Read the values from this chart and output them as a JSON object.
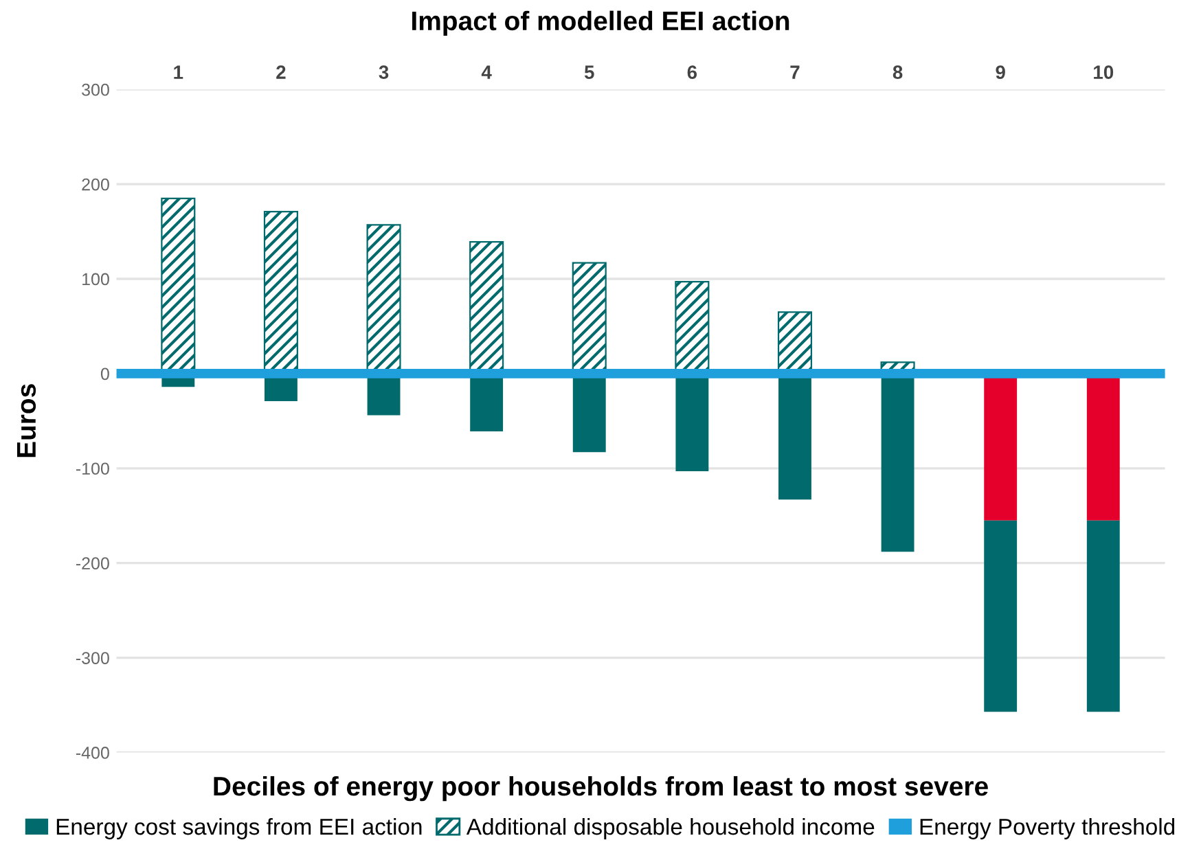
{
  "chart_data": {
    "type": "bar",
    "title": "Impact of modelled EEI action",
    "xlabel": "Deciles of energy poor households from least to most severe",
    "ylabel": "Euros",
    "categories": [
      "1",
      "2",
      "3",
      "4",
      "5",
      "6",
      "7",
      "8",
      "9",
      "10"
    ],
    "stacked": true,
    "series": [
      {
        "color": "#e4002b",
        "values": [
          null,
          null,
          null,
          null,
          null,
          null,
          null,
          null,
          -155,
          -155
        ]
      },
      {
        "name": "Energy cost savings from EEI action",
        "color": "#006a6c",
        "values": [
          -14,
          -29,
          -44,
          -61,
          -83,
          -103,
          -133,
          -188,
          -202,
          -202
        ]
      },
      {
        "name": "Additional disposable household income",
        "color": "#006a6c",
        "values": [
          185,
          171,
          157,
          139,
          117,
          97,
          65,
          12,
          null,
          null
        ]
      }
    ],
    "ylim": [
      -400,
      300
    ],
    "yticks": [
      -400,
      -300,
      -200,
      -100,
      0,
      100,
      200,
      300
    ],
    "grid": "y",
    "legend": "bottom",
    "ref_lines": [
      {
        "axis": "y",
        "value": 0,
        "label": "Energy Poverty threshold",
        "color": "#1fa0dc"
      }
    ]
  }
}
